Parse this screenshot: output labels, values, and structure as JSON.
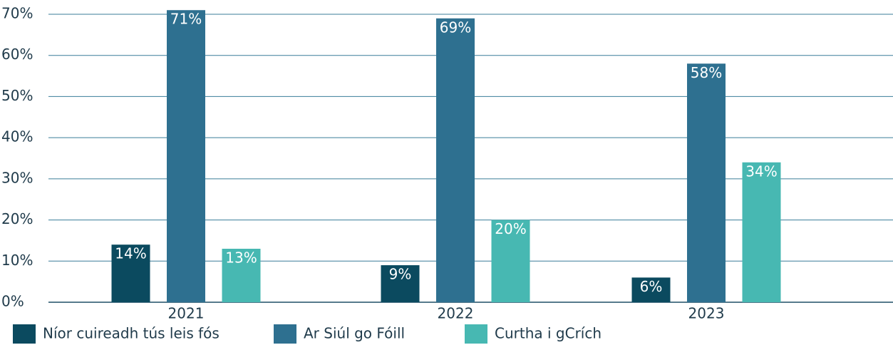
{
  "chart_data": {
    "type": "bar",
    "categories": [
      "2021",
      "2022",
      "2023"
    ],
    "series": [
      {
        "name": "Níor cuireadh tús leis fós",
        "color": "#0b4a5f",
        "values": [
          14,
          9,
          6
        ],
        "value_labels": [
          "14%",
          "9%",
          "6%"
        ]
      },
      {
        "name": "Ar Siúl go Fóill",
        "color": "#2e7090",
        "values": [
          71,
          69,
          58
        ],
        "value_labels": [
          "71%",
          "69%",
          "58%"
        ]
      },
      {
        "name": "Curtha i gCrích",
        "color": "#47b8b2",
        "values": [
          13,
          20,
          34
        ],
        "value_labels": [
          "13%",
          "20%",
          "34%"
        ]
      }
    ],
    "ylim": [
      0,
      70
    ],
    "yticks": [
      {
        "value": 0,
        "label": "0%"
      },
      {
        "value": 10,
        "label": "10%"
      },
      {
        "value": 20,
        "label": "20%"
      },
      {
        "value": 30,
        "label": "30%"
      },
      {
        "value": 40,
        "label": "40%"
      },
      {
        "value": 50,
        "label": "50%"
      },
      {
        "value": 60,
        "label": "60%"
      },
      {
        "value": 70,
        "label": "70%"
      }
    ],
    "grid": true,
    "legend": "bottom"
  }
}
